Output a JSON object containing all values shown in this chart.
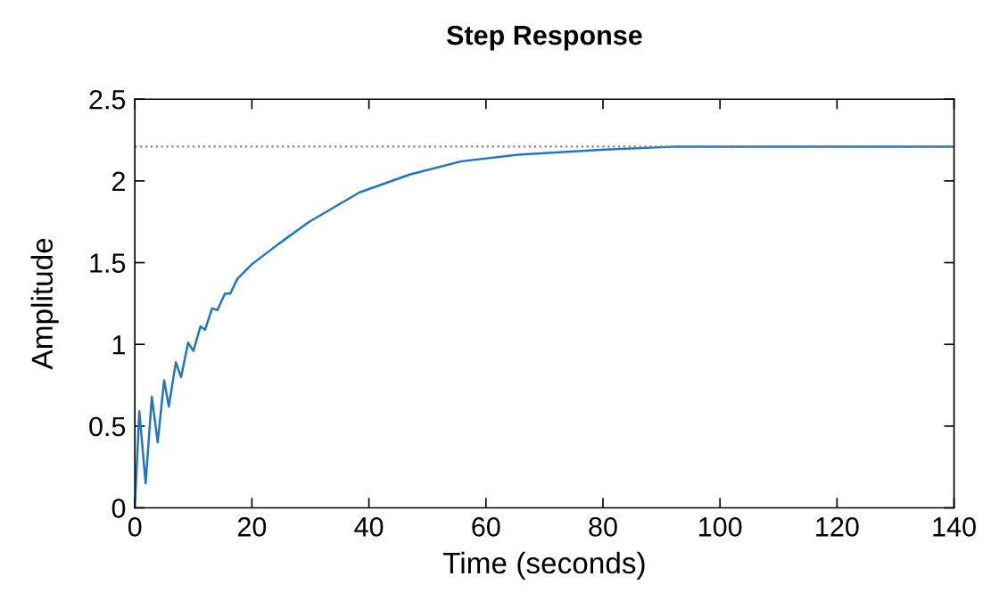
{
  "chart_data": {
    "type": "line",
    "title": "Step Response",
    "xlabel": "Time (seconds)",
    "ylabel": "Amplitude",
    "x": [
      0,
      0.76,
      1.84,
      2.9,
      3.9,
      5.0,
      5.8,
      7.0,
      7.9,
      9.1,
      10.0,
      11.2,
      12.0,
      13.2,
      14.1,
      15.4,
      16.3,
      17.5,
      20,
      24.4,
      29.8,
      38.4,
      47.1,
      55.8,
      65.5,
      79.6,
      92.6,
      103.4,
      140
    ],
    "series": [
      {
        "color": "#1f77c4",
        "values": [
          0,
          0.59,
          0.15,
          0.68,
          0.4,
          0.78,
          0.62,
          0.89,
          0.8,
          1.01,
          0.96,
          1.11,
          1.09,
          1.22,
          1.21,
          1.31,
          1.31,
          1.4,
          1.49,
          1.61,
          1.75,
          1.93,
          2.04,
          2.12,
          2.16,
          2.19,
          2.21,
          2.21,
          2.21
        ]
      }
    ],
    "xlim": [
      0,
      140
    ],
    "ylim": [
      0,
      2.5
    ],
    "xticks": [
      0,
      20,
      40,
      60,
      80,
      100,
      120,
      140
    ],
    "yticks": [
      0,
      0.5,
      1,
      1.5,
      2,
      2.5
    ],
    "ref_lines": [
      {
        "axis": "y",
        "value": 2.21,
        "color": "#808080",
        "line_style": "dotted"
      }
    ],
    "grid": false,
    "legend": false,
    "marker": "none",
    "line_style": "solid"
  }
}
